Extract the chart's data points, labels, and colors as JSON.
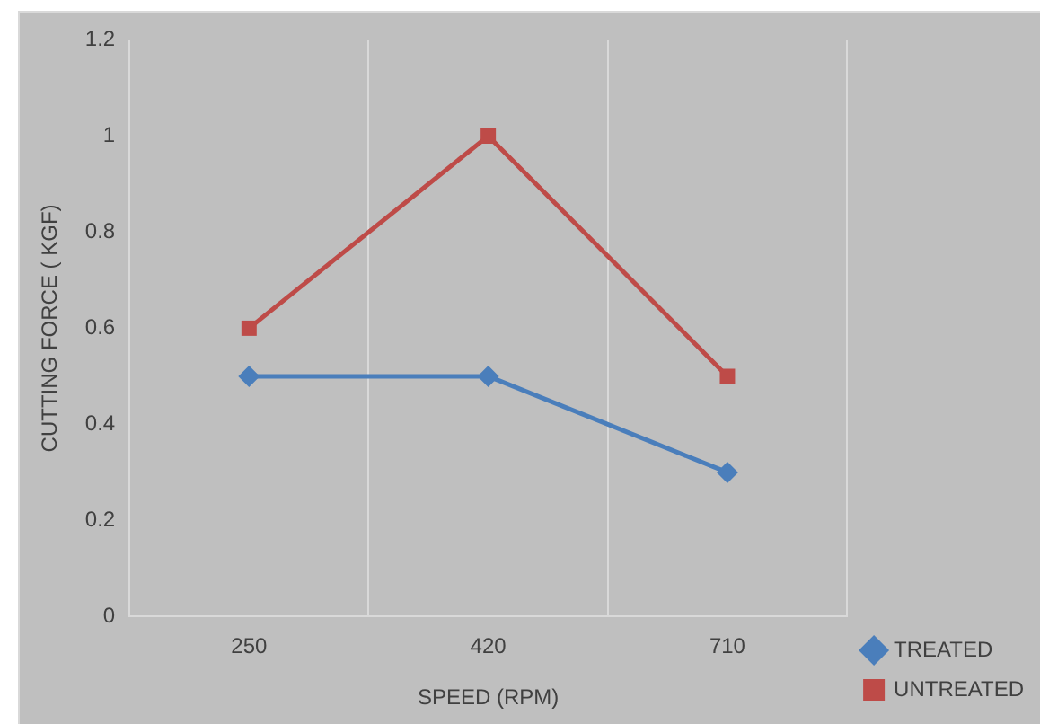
{
  "chart_data": {
    "type": "line",
    "xlabel": "SPEED (RPM)",
    "ylabel": "CUTTING FORCE ( KGF)",
    "categories": [
      "250",
      "420",
      "710"
    ],
    "series": [
      {
        "name": "TREATED",
        "color": "#4a7ebb",
        "marker": "diamond",
        "values": [
          0.5,
          0.5,
          0.3
        ]
      },
      {
        "name": "UNTREATED",
        "color": "#be4b48",
        "marker": "square",
        "values": [
          0.6,
          1.0,
          0.5
        ]
      }
    ],
    "ylim": [
      0,
      1.2
    ],
    "yticks": [
      0,
      0.2,
      0.4,
      0.6,
      0.8,
      1,
      1.2
    ],
    "grid": "x",
    "legend": "bottom right",
    "line_style": "solid"
  }
}
